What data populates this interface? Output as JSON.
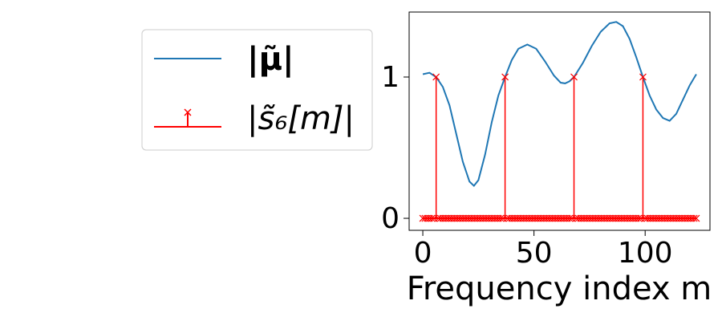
{
  "chart_data": {
    "type": "line_stem",
    "xlabel": "Frequency index m",
    "xlim": [
      -6.15,
      129.15
    ],
    "ylim": [
      -0.085,
      1.46
    ],
    "xticks": [
      0,
      50,
      100
    ],
    "yticks": [
      0,
      1
    ],
    "series": [
      {
        "name": "|μ̃|",
        "type": "line",
        "color": "#1f77b4",
        "x": [
          0,
          3,
          6,
          9,
          12,
          15,
          18,
          21,
          23,
          25,
          28,
          31,
          34,
          37,
          40,
          43,
          47,
          51,
          55,
          59,
          62,
          64,
          66,
          68,
          72,
          76,
          80,
          84,
          87,
          90,
          93,
          96,
          99,
          102,
          105,
          108,
          111,
          114,
          117,
          120,
          123
        ],
        "values": [
          1.02,
          1.03,
          1.0,
          0.93,
          0.8,
          0.6,
          0.4,
          0.26,
          0.23,
          0.27,
          0.45,
          0.68,
          0.87,
          1.0,
          1.12,
          1.2,
          1.23,
          1.2,
          1.11,
          1.01,
          0.96,
          0.955,
          0.97,
          1.0,
          1.1,
          1.22,
          1.32,
          1.38,
          1.39,
          1.36,
          1.27,
          1.14,
          1.0,
          0.87,
          0.77,
          0.71,
          0.69,
          0.74,
          0.84,
          0.94,
          1.02
        ]
      },
      {
        "name": "|s̃₆[m]|",
        "type": "stem",
        "color": "#ff0000",
        "x": [
          0,
          1,
          2,
          3,
          4,
          5,
          6,
          7,
          8,
          9,
          10,
          11,
          12,
          13,
          14,
          15,
          16,
          17,
          18,
          19,
          20,
          21,
          22,
          23,
          24,
          25,
          26,
          27,
          28,
          29,
          30,
          31,
          32,
          33,
          34,
          35,
          36,
          37,
          38,
          39,
          40,
          41,
          42,
          43,
          44,
          45,
          46,
          47,
          48,
          49,
          50,
          51,
          52,
          53,
          54,
          55,
          56,
          57,
          58,
          59,
          60,
          61,
          62,
          63,
          64,
          65,
          66,
          67,
          68,
          69,
          70,
          71,
          72,
          73,
          74,
          75,
          76,
          77,
          78,
          79,
          80,
          81,
          82,
          83,
          84,
          85,
          86,
          87,
          88,
          89,
          90,
          91,
          92,
          93,
          94,
          95,
          96,
          97,
          98,
          99,
          100,
          101,
          102,
          103,
          104,
          105,
          106,
          107,
          108,
          109,
          110,
          111,
          112,
          113,
          114,
          115,
          116,
          117,
          118,
          119,
          120,
          121,
          122,
          123
        ],
        "values": [
          0,
          0,
          0,
          0,
          0,
          0,
          1,
          0,
          0,
          0,
          0,
          0,
          0,
          0,
          0,
          0,
          0,
          0,
          0,
          0,
          0,
          0,
          0,
          0,
          0,
          0,
          0,
          0,
          0,
          0,
          0,
          0,
          0,
          0,
          0,
          0,
          0,
          1,
          0,
          0,
          0,
          0,
          0,
          0,
          0,
          0,
          0,
          0,
          0,
          0,
          0,
          0,
          0,
          0,
          0,
          0,
          0,
          0,
          0,
          0,
          0,
          0,
          0,
          0,
          0,
          0,
          0,
          0,
          1,
          0,
          0,
          0,
          0,
          0,
          0,
          0,
          0,
          0,
          0,
          0,
          0,
          0,
          0,
          0,
          0,
          0,
          0,
          0,
          0,
          0,
          0,
          0,
          0,
          0,
          0,
          0,
          0,
          0,
          0,
          1,
          0,
          0,
          0,
          0,
          0,
          0,
          0,
          0,
          0,
          0,
          0,
          0,
          0,
          0,
          0,
          0,
          0,
          0,
          0,
          0,
          0,
          0,
          0,
          0
        ]
      }
    ]
  }
}
